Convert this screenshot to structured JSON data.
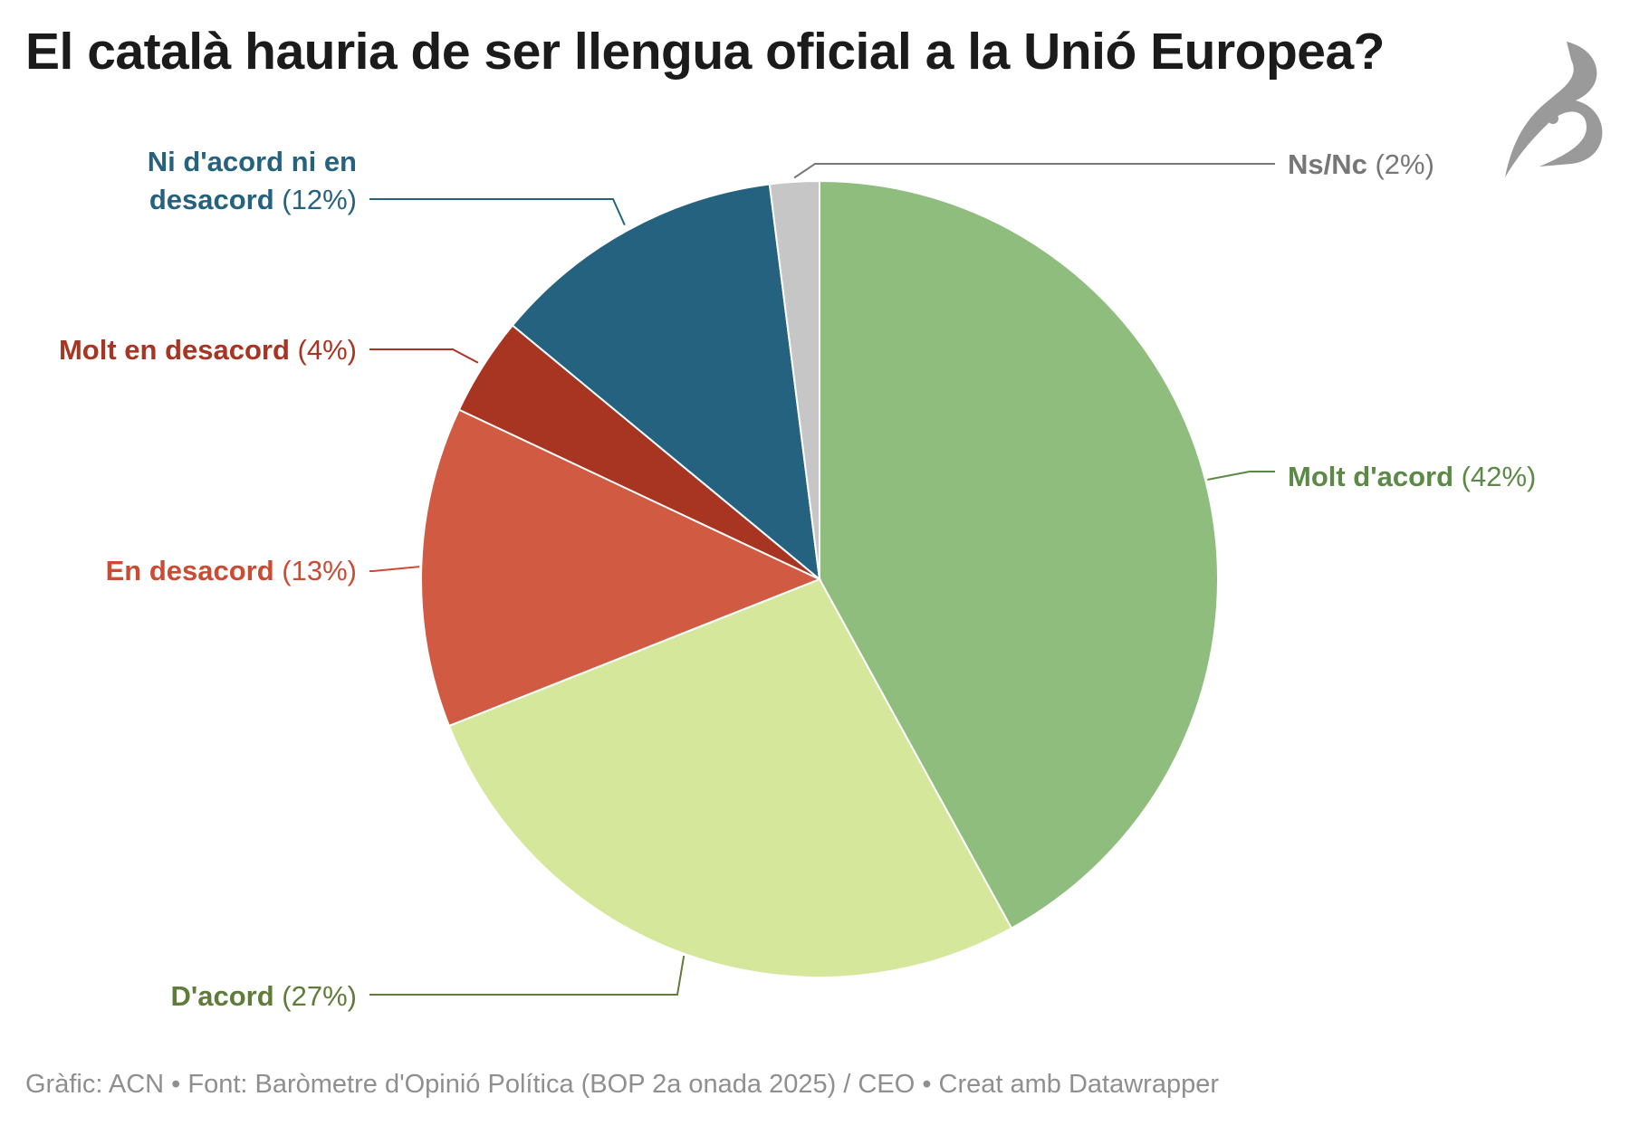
{
  "title": "El català hauria de ser llengua oficial a la Unió Europea?",
  "chart_data": {
    "type": "pie",
    "title": "El català hauria de ser llengua oficial a la Unió Europea?",
    "slices": [
      {
        "label": "Molt d'acord",
        "value": 42,
        "pct_label": "(42%)",
        "color": "#8fbd7d",
        "label_color": "#5a8a45"
      },
      {
        "label": "D'acord",
        "value": 27,
        "pct_label": "(27%)",
        "color": "#d5e79b",
        "label_color": "#5f7c3a"
      },
      {
        "label": "En desacord",
        "value": 13,
        "pct_label": "(13%)",
        "color": "#d05a42",
        "label_color": "#cc4b33"
      },
      {
        "label": "Molt en desacord",
        "value": 4,
        "pct_label": "(4%)",
        "color": "#a83522",
        "label_color": "#a83522"
      },
      {
        "label": "Ni d'acord ni en desacord",
        "label_lines": [
          "Ni d'acord ni en",
          "desacord"
        ],
        "value": 12,
        "pct_label": "(12%)",
        "color": "#24627f",
        "label_color": "#24627f"
      },
      {
        "label": "Ns/Nc",
        "value": 2,
        "pct_label": "(2%)",
        "color": "#c6c6c6",
        "label_color": "#777777"
      }
    ]
  },
  "footer": "Gràfic: ACN • Font: Baròmetre d'Opinió Política (BOP 2a onada 2025) / CEO • Creat amb Datawrapper",
  "logo": {
    "icon": "brand-logo-icon"
  }
}
